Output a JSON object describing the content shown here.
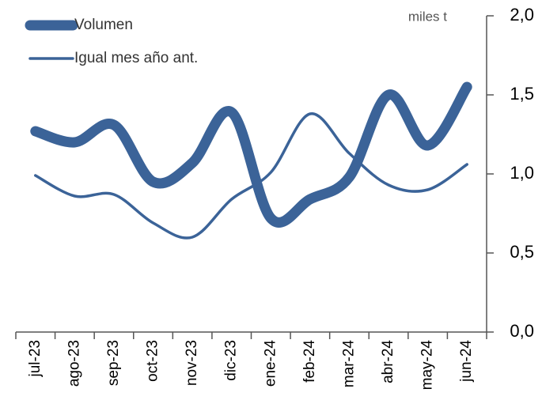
{
  "chart_data": {
    "type": "line",
    "y_label": "miles t",
    "categories": [
      "jul-23",
      "ago-23",
      "sep-23",
      "oct-23",
      "nov-23",
      "dic-23",
      "ene-24",
      "feb-24",
      "mar-24",
      "abr-24",
      "may-24",
      "jun-24"
    ],
    "series": [
      {
        "name": "Volumen",
        "color": "#3b6398",
        "values": [
          1.27,
          1.2,
          1.31,
          0.95,
          1.07,
          1.39,
          0.72,
          0.84,
          0.98,
          1.5,
          1.18,
          1.55
        ]
      },
      {
        "name": "Igual mes año ant.",
        "color": "#3b6398",
        "values": [
          0.99,
          0.86,
          0.87,
          0.69,
          0.6,
          0.84,
          1.01,
          1.38,
          1.13,
          0.93,
          0.9,
          1.06
        ]
      }
    ],
    "ylim": [
      0,
      2
    ],
    "yticks": [
      {
        "value": 0,
        "label": "0,0"
      },
      {
        "value": 0.5,
        "label": "0,5"
      },
      {
        "value": 1,
        "label": "1,0"
      },
      {
        "value": 1.5,
        "label": "1,5"
      },
      {
        "value": 2,
        "label": "2,0"
      }
    ]
  }
}
